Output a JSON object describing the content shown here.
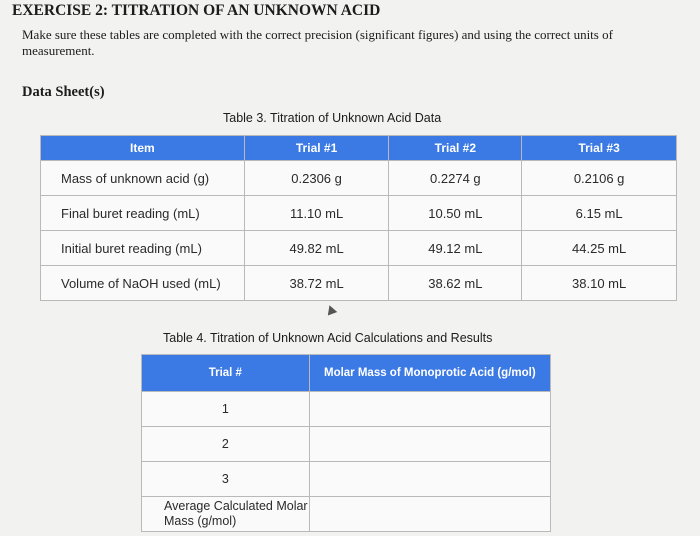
{
  "header": {
    "title": "EXERCISE 2: TITRATION OF AN UNKNOWN ACID",
    "instructions": "Make sure these tables are completed with the correct precision (significant figures) and using the correct units of measurement.",
    "data_sheet": "Data Sheet(s)"
  },
  "table3": {
    "caption": "Table 3. Titration of Unknown Acid Data",
    "headers": [
      "Item",
      "Trial #1",
      "Trial #2",
      "Trial #3"
    ],
    "rows": [
      [
        "Mass of unknown acid (g)",
        "0.2306 g",
        "0.2274 g",
        "0.2106 g"
      ],
      [
        "Final buret reading (mL)",
        "11.10 mL",
        "10.50 mL",
        "6.15 mL"
      ],
      [
        "Initial buret reading (mL)",
        "49.82 mL",
        "49.12 mL",
        "44.25 mL"
      ],
      [
        "Volume of NaOH used (mL)",
        "38.72 mL",
        "38.62 mL",
        "38.10 mL"
      ]
    ]
  },
  "table4": {
    "caption": "Table 4. Titration of Unknown Acid Calculations and Results",
    "headers": [
      "Trial #",
      "Molar Mass of Monoprotic Acid (g/mol)"
    ],
    "rows": [
      [
        "1",
        ""
      ],
      [
        "2",
        ""
      ],
      [
        "3",
        ""
      ],
      [
        "Average Calculated Molar Mass (g/mol)",
        ""
      ]
    ]
  }
}
